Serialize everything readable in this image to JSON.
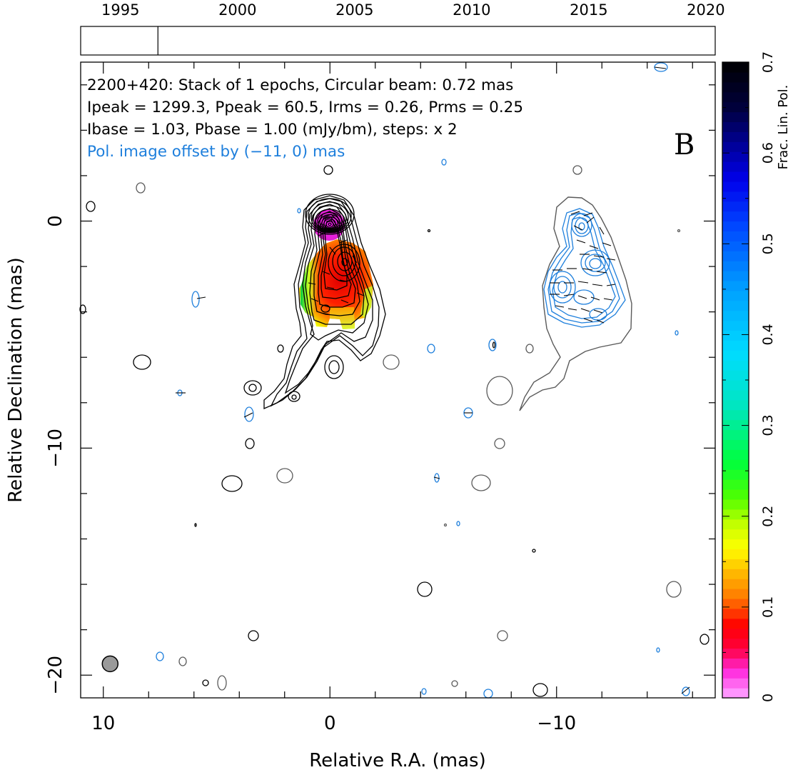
{
  "chart_data": {
    "type": "contour",
    "info_lines": [
      "2200+420: Stack of 1 epochs, Circular beam: 0.72 mas",
      "Ipeak = 1299.3, Ppeak = 60.5, Irms = 0.26, Prms = 0.25",
      "Ibase = 1.03, Pbase = 1.00 (mJy/bm), steps: x 2"
    ],
    "offset_note": "Pol. image offset by (−11, 0) mas",
    "panel_letter": "B",
    "xlabel": "Relative R.A. (mas)",
    "ylabel": "Relative Declination (mas)",
    "colorbar_label": "Frac. Lin. Pol.",
    "xlim": [
      11,
      -17
    ],
    "ylim": [
      -21,
      7
    ],
    "x_ticks": [
      {
        "value": 10,
        "label": "10"
      },
      {
        "value": 0,
        "label": "0"
      },
      {
        "value": -10,
        "label": "−10"
      }
    ],
    "y_ticks": [
      {
        "value": 0,
        "label": "0"
      },
      {
        "value": -10,
        "label": "−10"
      },
      {
        "value": -20,
        "label": "−20"
      }
    ],
    "timeline": {
      "years": [
        1995,
        2000,
        2005,
        2010,
        2015,
        2020
      ],
      "range": [
        1993.3,
        2020.4
      ],
      "epoch_marker": 1996.6
    },
    "colorbar": {
      "range": [
        0,
        0.7
      ],
      "ticks": [
        {
          "value": 0,
          "label": "0"
        },
        {
          "value": 0.1,
          "label": "0.1"
        },
        {
          "value": 0.2,
          "label": "0.2"
        },
        {
          "value": 0.3,
          "label": "0.3"
        },
        {
          "value": 0.4,
          "label": "0.4"
        },
        {
          "value": 0.5,
          "label": "0.5"
        },
        {
          "value": 0.6,
          "label": "0.6"
        },
        {
          "value": 0.7,
          "label": "0.7"
        }
      ]
    },
    "beam": {
      "x": 9.7,
      "y": -19.5,
      "diameter_mas": 0.72
    },
    "colors": {
      "stokes_i": "#000000",
      "noise_grey": "#5a5a5a",
      "polarization": "#1e7fdc"
    }
  }
}
